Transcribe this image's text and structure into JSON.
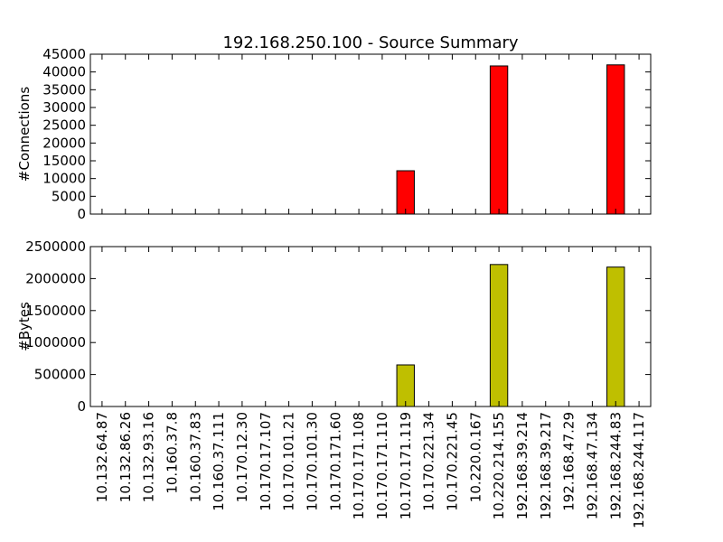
{
  "chart_data": {
    "title": "192.168.250.100 - Source Summary",
    "categories": [
      "10.132.64.87",
      "10.132.86.26",
      "10.132.93.16",
      "10.160.37.8",
      "10.160.37.83",
      "10.160.37.111",
      "10.170.12.30",
      "10.170.17.107",
      "10.170.101.21",
      "10.170.101.30",
      "10.170.171.60",
      "10.170.171.108",
      "10.170.171.110",
      "10.170.171.119",
      "10.170.221.34",
      "10.170.221.45",
      "10.220.0.167",
      "10.220.214.155",
      "192.168.39.214",
      "192.168.39.217",
      "192.168.47.29",
      "192.168.47.134",
      "192.168.244.83",
      "192.168.244.117"
    ],
    "subplots": [
      {
        "type": "bar",
        "ylabel": "#Connections",
        "ylim": [
          0,
          45000
        ],
        "yticks": [
          "0",
          "5000",
          "10000",
          "15000",
          "20000",
          "25000",
          "30000",
          "35000",
          "40000",
          "45000"
        ],
        "color": "#ff0000",
        "values": [
          0,
          0,
          0,
          0,
          0,
          0,
          0,
          0,
          0,
          0,
          0,
          0,
          0,
          12200,
          0,
          0,
          0,
          41700,
          0,
          0,
          0,
          0,
          42000,
          0
        ]
      },
      {
        "type": "bar",
        "ylabel": "#Bytes",
        "ylim": [
          0,
          2500000
        ],
        "yticks": [
          "0",
          "500000",
          "1000000",
          "1500000",
          "2000000",
          "2500000"
        ],
        "color": "#bfbf00",
        "values": [
          0,
          0,
          0,
          0,
          0,
          0,
          0,
          0,
          0,
          0,
          0,
          0,
          0,
          650000,
          0,
          0,
          0,
          2220000,
          0,
          0,
          0,
          0,
          2180000,
          0
        ]
      }
    ]
  }
}
